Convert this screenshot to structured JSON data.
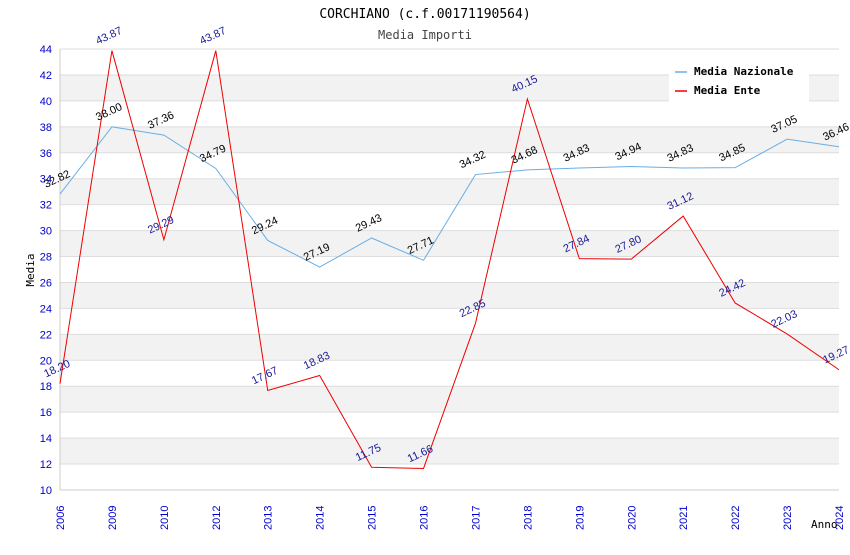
{
  "chart_data": {
    "type": "line",
    "title": "CORCHIANO (c.f.00171190564)",
    "subtitle": "Media Importi",
    "xlabel": "Anno",
    "ylabel": "Media",
    "categories": [
      "2006",
      "2009",
      "2010",
      "2012",
      "2013",
      "2014",
      "2015",
      "2016",
      "2017",
      "2018",
      "2019",
      "2020",
      "2021",
      "2022",
      "2023",
      "2024"
    ],
    "ylim": [
      10,
      44
    ],
    "yticks": [
      "10",
      "12",
      "14",
      "16",
      "18",
      "20",
      "22",
      "24",
      "26",
      "28",
      "30",
      "32",
      "34",
      "36",
      "38",
      "40",
      "42",
      "44"
    ],
    "grid": true,
    "legend_position": "top-right",
    "series": [
      {
        "name": "Media Nazionale",
        "color": "#6aaee6",
        "label_color": "#000000",
        "values": [
          32.82,
          38.0,
          37.36,
          34.79,
          29.24,
          27.19,
          29.43,
          27.71,
          34.32,
          34.68,
          34.83,
          34.94,
          34.83,
          34.85,
          37.05,
          36.46
        ],
        "labels": [
          "32.82",
          "38.00",
          "37.36",
          "34.79",
          "29.24",
          "27.19",
          "29.43",
          "27.71",
          "34.32",
          "34.68",
          "34.83",
          "34.94",
          "34.83",
          "34.85",
          "37.05",
          "36.46"
        ]
      },
      {
        "name": "Media Ente",
        "color": "#ee0000",
        "label_color": "#1a1a99",
        "values": [
          18.2,
          43.87,
          29.29,
          43.87,
          17.67,
          18.83,
          11.75,
          11.66,
          22.85,
          40.15,
          27.84,
          27.8,
          31.12,
          24.42,
          22.03,
          19.27
        ],
        "labels": [
          "18.20",
          "43.87",
          "29.29",
          "43.87",
          "17.67",
          "18.83",
          "11.75",
          "11.66",
          "22.85",
          "40.15",
          "27.84",
          "27.80",
          "31.12",
          "24.42",
          "22.03",
          "19.27"
        ]
      }
    ]
  }
}
